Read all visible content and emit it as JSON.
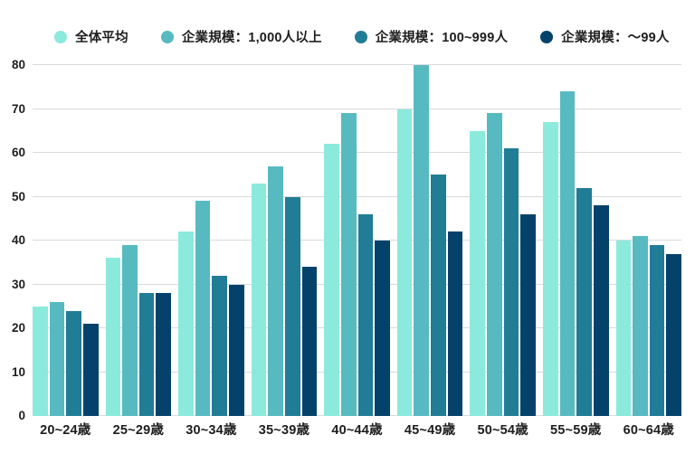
{
  "legend": {
    "items": [
      {
        "label": "全体平均",
        "color": "#8BEADC"
      },
      {
        "label": "企業規模：1,000人以上",
        "color": "#57BAC0"
      },
      {
        "label": "企業規模：100~999人",
        "color": "#217C95"
      },
      {
        "label": "企業規模：～99人",
        "color": "#04426B"
      }
    ]
  },
  "chart_data": {
    "type": "bar",
    "title": "",
    "xlabel": "",
    "ylabel": "",
    "categories": [
      "20~24歳",
      "25~29歳",
      "30~34歳",
      "35~39歳",
      "40~44歳",
      "45~49歳",
      "50~54歳",
      "55~59歳",
      "60~64歳"
    ],
    "series": [
      {
        "name": "全体平均",
        "color": "#8BEADC",
        "values": [
          25,
          36,
          42,
          53,
          62,
          70,
          65,
          67,
          40
        ]
      },
      {
        "name": "企業規模：1,000人以上",
        "color": "#57BAC0",
        "values": [
          26,
          39,
          49,
          57,
          69,
          80,
          69,
          74,
          41
        ]
      },
      {
        "name": "企業規模：100~999人",
        "color": "#217C95",
        "values": [
          24,
          28,
          32,
          50,
          46,
          55,
          61,
          52,
          39
        ]
      },
      {
        "name": "企業規模：～99人",
        "color": "#04426B",
        "values": [
          21,
          28,
          30,
          34,
          40,
          42,
          46,
          48,
          37
        ]
      }
    ],
    "ylim": [
      0,
      80
    ],
    "yticks": [
      0,
      10,
      20,
      30,
      40,
      50,
      60,
      70,
      80
    ],
    "grid": true,
    "gridline_color": "#d8dadd",
    "legend_position": "top-left",
    "background": "#ffffff"
  }
}
